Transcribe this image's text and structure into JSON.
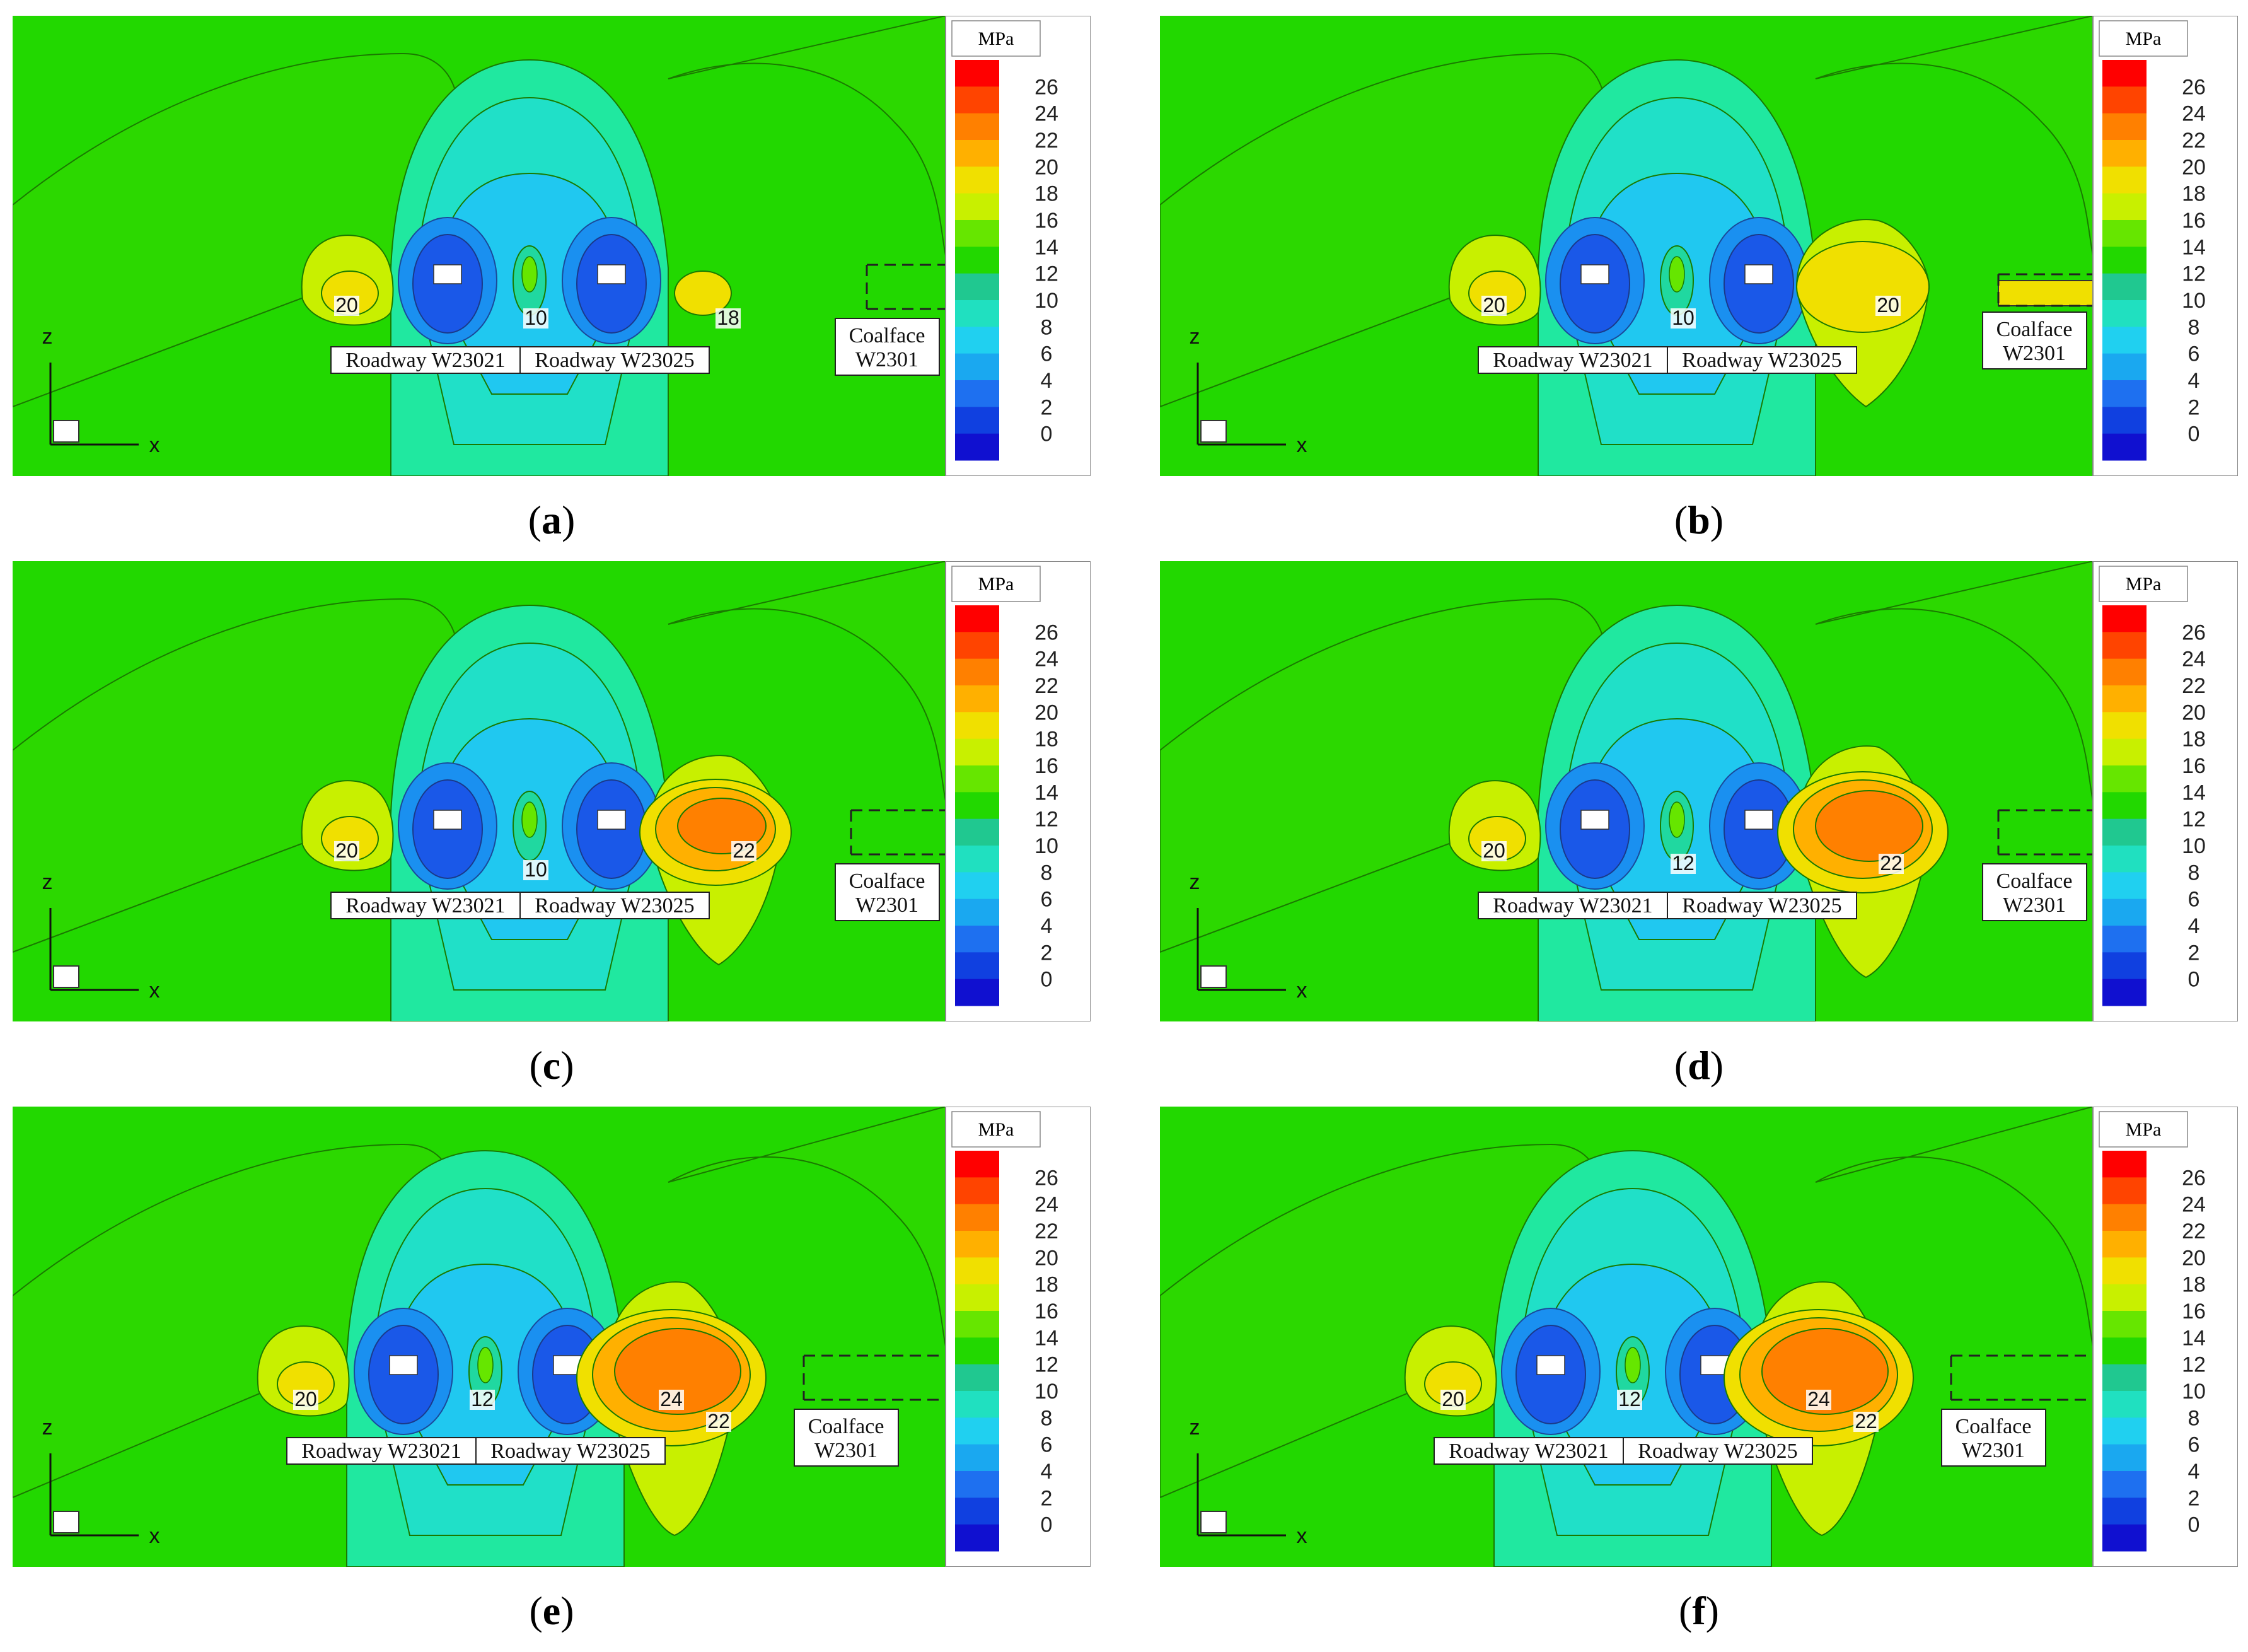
{
  "colorbar": {
    "unit": "MPa",
    "ticks": [
      "26",
      "24",
      "22",
      "20",
      "18",
      "16",
      "14",
      "12",
      "10",
      "8",
      "6",
      "4",
      "2",
      "0"
    ],
    "colors": [
      "#ff0000",
      "#ff4400",
      "#ff8000",
      "#ffb000",
      "#f0e000",
      "#c8f000",
      "#66e600",
      "#22d800",
      "#20c890",
      "#20e0c0",
      "#20d0f0",
      "#1aa8f0",
      "#1e70f0",
      "#1040e0",
      "#1010d0"
    ]
  },
  "axes": {
    "z": "z",
    "x": "x"
  },
  "labels": {
    "roadway_a": "Roadway W23021",
    "roadway_b": "Roadway W23025",
    "coalface_line1": "Coalface",
    "coalface_line2": "W2301"
  },
  "panels": [
    {
      "id": "a",
      "letter": "a",
      "contour_labels": [
        "20",
        "10",
        "18"
      ]
    },
    {
      "id": "b",
      "letter": "b",
      "contour_labels": [
        "20",
        "10",
        "20"
      ]
    },
    {
      "id": "c",
      "letter": "c",
      "contour_labels": [
        "20",
        "10",
        "22"
      ]
    },
    {
      "id": "d",
      "letter": "d",
      "contour_labels": [
        "20",
        "12",
        "22"
      ]
    },
    {
      "id": "e",
      "letter": "e",
      "contour_labels": [
        "20",
        "12",
        "24",
        "22"
      ]
    },
    {
      "id": "f",
      "letter": "f",
      "contour_labels": [
        "20",
        "12",
        "24",
        "22"
      ]
    }
  ]
}
